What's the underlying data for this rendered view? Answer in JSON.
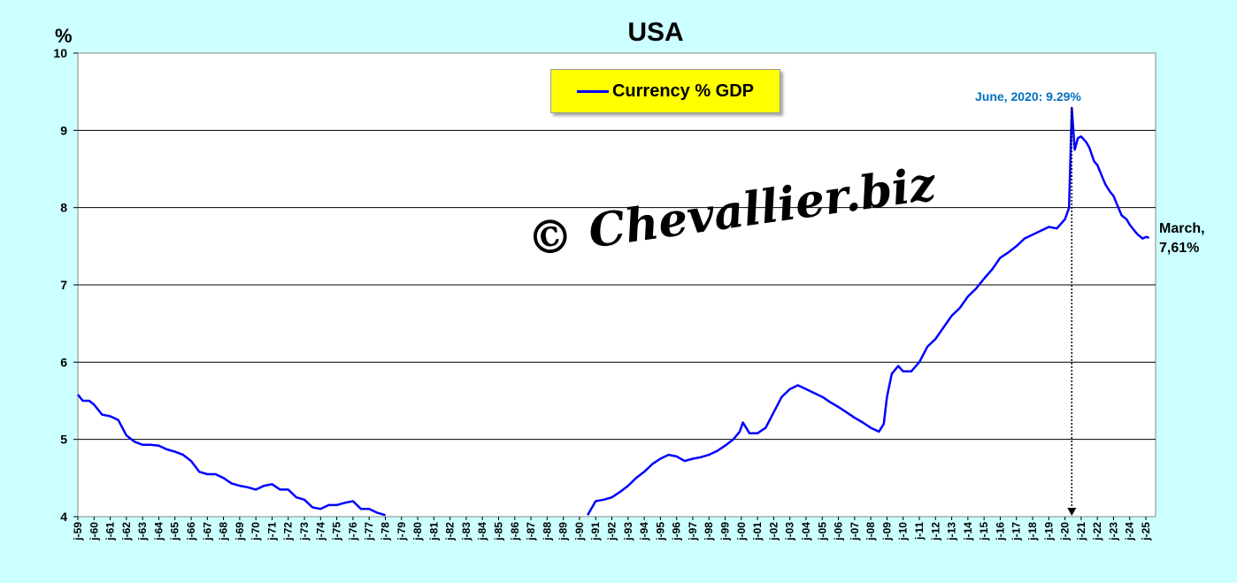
{
  "chart_data": {
    "type": "line",
    "title": "USA",
    "ylabel": "%",
    "ylim": [
      4,
      10
    ],
    "yticks": [
      4,
      5,
      6,
      7,
      8,
      9,
      10
    ],
    "grid": true,
    "legend": {
      "placement": "top-center",
      "entries": [
        "Currency % GDP"
      ]
    },
    "x_tick_labels": [
      "j-59",
      "j-60",
      "j-61",
      "j-62",
      "j-63",
      "j-64",
      "j-65",
      "j-66",
      "j-67",
      "j-68",
      "j-69",
      "j-70",
      "j-71",
      "j-72",
      "j-73",
      "j-74",
      "j-75",
      "j-76",
      "j-77",
      "j-78",
      "j-79",
      "j-80",
      "j-81",
      "j-82",
      "j-83",
      "j-84",
      "j-85",
      "j-86",
      "j-87",
      "j-88",
      "j-89",
      "j-90",
      "j-91",
      "j-92",
      "j-93",
      "j-94",
      "j-95",
      "j-96",
      "j-97",
      "j-98",
      "j-99",
      "j-00",
      "j-01",
      "j-02",
      "j-03",
      "j-04",
      "j-05",
      "j-06",
      "j-07",
      "j-08",
      "j-09",
      "j-10",
      "j-11",
      "j-12",
      "j-13",
      "j-14",
      "j-15",
      "j-16",
      "j-17",
      "j-18",
      "j-19",
      "j-20",
      "j-21",
      "j-22",
      "j-23",
      "j-24",
      "j-25"
    ],
    "series": [
      {
        "name": "Currency % GDP",
        "color": "#0000ff",
        "x": [
          1959.0,
          1959.3,
          1959.7,
          1960.0,
          1960.5,
          1961.0,
          1961.5,
          1962.0,
          1962.5,
          1963.0,
          1963.5,
          1964.0,
          1964.5,
          1965.0,
          1965.5,
          1966.0,
          1966.5,
          1967.0,
          1967.5,
          1968.0,
          1968.5,
          1969.0,
          1969.5,
          1970.0,
          1970.5,
          1971.0,
          1971.5,
          1972.0,
          1972.5,
          1973.0,
          1973.5,
          1974.0,
          1974.5,
          1975.0,
          1975.5,
          1976.0,
          1976.5,
          1977.0,
          1977.5,
          1978.0,
          1990.5,
          1991.0,
          1991.5,
          1992.0,
          1992.5,
          1993.0,
          1993.5,
          1994.0,
          1994.5,
          1995.0,
          1995.5,
          1996.0,
          1996.5,
          1997.0,
          1997.5,
          1998.0,
          1998.5,
          1999.0,
          1999.5,
          1999.9,
          2000.1,
          2000.5,
          2001.0,
          2001.5,
          2002.0,
          2002.5,
          2003.0,
          2003.5,
          2004.0,
          2004.5,
          2005.0,
          2005.5,
          2006.0,
          2006.5,
          2007.0,
          2007.5,
          2008.0,
          2008.5,
          2008.8,
          2009.0,
          2009.3,
          2009.7,
          2010.0,
          2010.5,
          2011.0,
          2011.5,
          2012.0,
          2012.5,
          2013.0,
          2013.5,
          2014.0,
          2014.5,
          2015.0,
          2015.5,
          2016.0,
          2016.5,
          2017.0,
          2017.5,
          2018.0,
          2018.5,
          2019.0,
          2019.5,
          2020.0,
          2020.25,
          2020.42,
          2020.6,
          2020.8,
          2021.0,
          2021.3,
          2021.5,
          2021.8,
          2022.0,
          2022.3,
          2022.5,
          2022.8,
          2023.0,
          2023.3,
          2023.5,
          2023.8,
          2024.0,
          2024.3,
          2024.5,
          2024.8,
          2025.0,
          2025.2
        ],
        "values": [
          5.58,
          5.5,
          5.5,
          5.45,
          5.32,
          5.3,
          5.25,
          5.05,
          4.97,
          4.93,
          4.93,
          4.92,
          4.87,
          4.84,
          4.8,
          4.72,
          4.58,
          4.55,
          4.55,
          4.5,
          4.43,
          4.4,
          4.38,
          4.35,
          4.4,
          4.42,
          4.35,
          4.35,
          4.25,
          4.22,
          4.12,
          4.1,
          4.15,
          4.15,
          4.18,
          4.2,
          4.1,
          4.1,
          4.05,
          4.02,
          4.02,
          4.2,
          4.22,
          4.25,
          4.32,
          4.4,
          4.5,
          4.58,
          4.68,
          4.75,
          4.8,
          4.78,
          4.72,
          4.75,
          4.77,
          4.8,
          4.85,
          4.92,
          5.0,
          5.1,
          5.22,
          5.08,
          5.08,
          5.15,
          5.35,
          5.55,
          5.65,
          5.7,
          5.65,
          5.6,
          5.55,
          5.48,
          5.42,
          5.35,
          5.28,
          5.22,
          5.15,
          5.1,
          5.2,
          5.55,
          5.85,
          5.95,
          5.88,
          5.88,
          6.0,
          6.2,
          6.3,
          6.45,
          6.6,
          6.7,
          6.85,
          6.95,
          7.08,
          7.2,
          7.35,
          7.42,
          7.5,
          7.6,
          7.65,
          7.7,
          7.75,
          7.73,
          7.85,
          8.0,
          9.29,
          8.75,
          8.9,
          8.92,
          8.85,
          8.78,
          8.6,
          8.55,
          8.4,
          8.3,
          8.2,
          8.15,
          8.0,
          7.9,
          7.85,
          7.78,
          7.7,
          7.65,
          7.6,
          7.62,
          7.61
        ]
      }
    ],
    "annotations": [
      {
        "text": "June, 2020: 9.29%",
        "x": 2020.42,
        "y": 9.29
      },
      {
        "text_line1": "March,",
        "text_line2": "7,61%",
        "x": 2025.2,
        "y": 7.61
      }
    ],
    "watermark": "© Chevallier.biz"
  }
}
